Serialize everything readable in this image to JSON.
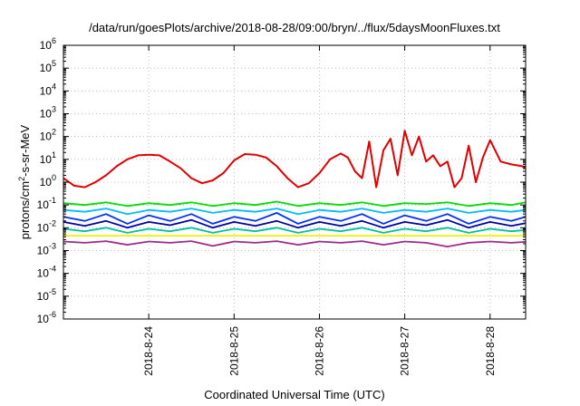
{
  "chart_data": {
    "type": "line",
    "title": "/data/run/goesPlots/archive/2018-08-28/09:00/bryn/../flux/5daysMoonFluxes.txt",
    "xlabel": "Coordinated Universal Time (UTC)",
    "ylabel": {
      "prefix": "protons/cm",
      "sup": "2",
      "suffix": "-s-sr-MeV"
    },
    "y_scale": "log",
    "ylim_exp": [
      -6,
      6
    ],
    "xlim": [
      "2018-08-23T00:00",
      "2018-08-28T10:00"
    ],
    "x_ticks": [
      {
        "label": "2018-8-24",
        "value": "2018-08-24T00:00"
      },
      {
        "label": "2018-8-25",
        "value": "2018-08-25T00:00"
      },
      {
        "label": "2018-8-26",
        "value": "2018-08-26T00:00"
      },
      {
        "label": "2018-8-27",
        "value": "2018-08-27T00:00"
      },
      {
        "label": "2018-8-28",
        "value": "2018-08-28T00:00"
      }
    ],
    "y_ticks": [
      {
        "base": "10",
        "exp": "6"
      },
      {
        "base": "10",
        "exp": "5"
      },
      {
        "base": "10",
        "exp": "4"
      },
      {
        "base": "10",
        "exp": "3"
      },
      {
        "base": "10",
        "exp": "2"
      },
      {
        "base": "10",
        "exp": "1"
      },
      {
        "base": "10",
        "exp": "0"
      },
      {
        "base": "10",
        "exp": "-1"
      },
      {
        "base": "10",
        "exp": "-2"
      },
      {
        "base": "10",
        "exp": "-3"
      },
      {
        "base": "10",
        "exp": "-4"
      },
      {
        "base": "10",
        "exp": "-5"
      },
      {
        "base": "10",
        "exp": "-6"
      }
    ],
    "grid": true,
    "legend": "none",
    "series": [
      {
        "color": "#e00000",
        "x": [
          "2018-08-23T00:00",
          "2018-08-23T03:00",
          "2018-08-23T06:00",
          "2018-08-23T09:00",
          "2018-08-23T12:00",
          "2018-08-23T15:00",
          "2018-08-23T18:00",
          "2018-08-23T21:00",
          "2018-08-24T00:00",
          "2018-08-24T03:00",
          "2018-08-24T06:00",
          "2018-08-24T09:00",
          "2018-08-24T12:00",
          "2018-08-24T15:00",
          "2018-08-24T18:00",
          "2018-08-24T21:00",
          "2018-08-25T00:00",
          "2018-08-25T03:00",
          "2018-08-25T06:00",
          "2018-08-25T09:00",
          "2018-08-25T12:00",
          "2018-08-25T15:00",
          "2018-08-25T18:00",
          "2018-08-25T21:00",
          "2018-08-26T00:00",
          "2018-08-26T03:00",
          "2018-08-26T06:00",
          "2018-08-26T08:00",
          "2018-08-26T10:00",
          "2018-08-26T12:00",
          "2018-08-26T14:00",
          "2018-08-26T16:00",
          "2018-08-26T18:00",
          "2018-08-26T20:00",
          "2018-08-26T22:00",
          "2018-08-27T00:00",
          "2018-08-27T02:00",
          "2018-08-27T04:00",
          "2018-08-27T06:00",
          "2018-08-27T08:00",
          "2018-08-27T10:00",
          "2018-08-27T12:00",
          "2018-08-27T14:00",
          "2018-08-27T16:00",
          "2018-08-27T18:00",
          "2018-08-27T20:00",
          "2018-08-27T22:00",
          "2018-08-28T00:00",
          "2018-08-28T03:00",
          "2018-08-28T06:00",
          "2018-08-28T09:00",
          "2018-08-28T10:00"
        ],
        "y": [
          1.5,
          0.7,
          0.6,
          1.0,
          2.0,
          5,
          10,
          15,
          16,
          15,
          8,
          4,
          1.5,
          0.9,
          1.2,
          2.5,
          9,
          17,
          16,
          12,
          5,
          1.5,
          0.6,
          0.9,
          2.5,
          10,
          18,
          12,
          3,
          1.5,
          60,
          0.6,
          25,
          80,
          2.0,
          180,
          15,
          100,
          8,
          15,
          5,
          8,
          0.6,
          1.5,
          40,
          1.0,
          12,
          70,
          8,
          6,
          5,
          4
        ]
      },
      {
        "color": "#00dd00",
        "x": [
          "2018-08-23T00:00",
          "2018-08-23T06:00",
          "2018-08-23T12:00",
          "2018-08-23T18:00",
          "2018-08-24T00:00",
          "2018-08-24T06:00",
          "2018-08-24T12:00",
          "2018-08-24T18:00",
          "2018-08-25T00:00",
          "2018-08-25T06:00",
          "2018-08-25T12:00",
          "2018-08-25T18:00",
          "2018-08-26T00:00",
          "2018-08-26T06:00",
          "2018-08-26T12:00",
          "2018-08-26T18:00",
          "2018-08-27T00:00",
          "2018-08-27T06:00",
          "2018-08-27T12:00",
          "2018-08-27T18:00",
          "2018-08-28T00:00",
          "2018-08-28T06:00",
          "2018-08-28T10:00"
        ],
        "y": [
          0.12,
          0.1,
          0.13,
          0.09,
          0.12,
          0.1,
          0.13,
          0.09,
          0.12,
          0.1,
          0.14,
          0.09,
          0.12,
          0.1,
          0.13,
          0.09,
          0.12,
          0.11,
          0.13,
          0.09,
          0.12,
          0.1,
          0.13
        ]
      },
      {
        "color": "#00bbff",
        "x": [
          "2018-08-23T00:00",
          "2018-08-23T06:00",
          "2018-08-23T12:00",
          "2018-08-23T18:00",
          "2018-08-24T00:00",
          "2018-08-24T06:00",
          "2018-08-24T12:00",
          "2018-08-24T18:00",
          "2018-08-25T00:00",
          "2018-08-25T06:00",
          "2018-08-25T12:00",
          "2018-08-25T18:00",
          "2018-08-26T00:00",
          "2018-08-26T06:00",
          "2018-08-26T12:00",
          "2018-08-26T18:00",
          "2018-08-27T00:00",
          "2018-08-27T06:00",
          "2018-08-27T12:00",
          "2018-08-27T18:00",
          "2018-08-28T00:00",
          "2018-08-28T06:00",
          "2018-08-28T10:00"
        ],
        "y": [
          0.06,
          0.05,
          0.07,
          0.04,
          0.06,
          0.05,
          0.07,
          0.045,
          0.06,
          0.05,
          0.07,
          0.04,
          0.06,
          0.05,
          0.07,
          0.045,
          0.06,
          0.05,
          0.07,
          0.045,
          0.06,
          0.05,
          0.06
        ]
      },
      {
        "color": "#0030ff",
        "x": [
          "2018-08-23T00:00",
          "2018-08-23T06:00",
          "2018-08-23T12:00",
          "2018-08-23T18:00",
          "2018-08-24T00:00",
          "2018-08-24T06:00",
          "2018-08-24T12:00",
          "2018-08-24T18:00",
          "2018-08-25T00:00",
          "2018-08-25T06:00",
          "2018-08-25T12:00",
          "2018-08-25T18:00",
          "2018-08-26T00:00",
          "2018-08-26T06:00",
          "2018-08-26T12:00",
          "2018-08-26T18:00",
          "2018-08-27T00:00",
          "2018-08-27T06:00",
          "2018-08-27T12:00",
          "2018-08-27T18:00",
          "2018-08-28T00:00",
          "2018-08-28T06:00",
          "2018-08-28T10:00"
        ],
        "y": [
          0.03,
          0.02,
          0.04,
          0.015,
          0.035,
          0.02,
          0.04,
          0.015,
          0.03,
          0.02,
          0.045,
          0.015,
          0.03,
          0.02,
          0.04,
          0.015,
          0.035,
          0.02,
          0.04,
          0.015,
          0.03,
          0.02,
          0.03
        ]
      },
      {
        "color": "#0000a0",
        "x": [
          "2018-08-23T00:00",
          "2018-08-23T06:00",
          "2018-08-23T12:00",
          "2018-08-23T18:00",
          "2018-08-24T00:00",
          "2018-08-24T06:00",
          "2018-08-24T12:00",
          "2018-08-24T18:00",
          "2018-08-25T00:00",
          "2018-08-25T06:00",
          "2018-08-25T12:00",
          "2018-08-25T18:00",
          "2018-08-26T00:00",
          "2018-08-26T06:00",
          "2018-08-26T12:00",
          "2018-08-26T18:00",
          "2018-08-27T00:00",
          "2018-08-27T06:00",
          "2018-08-27T12:00",
          "2018-08-27T18:00",
          "2018-08-28T00:00",
          "2018-08-28T06:00",
          "2018-08-28T10:00"
        ],
        "y": [
          0.018,
          0.012,
          0.02,
          0.01,
          0.018,
          0.013,
          0.022,
          0.01,
          0.018,
          0.012,
          0.02,
          0.01,
          0.018,
          0.012,
          0.02,
          0.01,
          0.018,
          0.013,
          0.022,
          0.01,
          0.018,
          0.012,
          0.016
        ]
      },
      {
        "color": "#00c0a0",
        "x": [
          "2018-08-23T00:00",
          "2018-08-23T06:00",
          "2018-08-23T12:00",
          "2018-08-23T18:00",
          "2018-08-24T00:00",
          "2018-08-24T06:00",
          "2018-08-24T12:00",
          "2018-08-24T18:00",
          "2018-08-25T00:00",
          "2018-08-25T06:00",
          "2018-08-25T12:00",
          "2018-08-25T18:00",
          "2018-08-26T00:00",
          "2018-08-26T06:00",
          "2018-08-26T12:00",
          "2018-08-26T18:00",
          "2018-08-27T00:00",
          "2018-08-27T06:00",
          "2018-08-27T12:00",
          "2018-08-27T18:00",
          "2018-08-28T00:00",
          "2018-08-28T06:00",
          "2018-08-28T10:00"
        ],
        "y": [
          0.009,
          0.007,
          0.01,
          0.006,
          0.009,
          0.007,
          0.01,
          0.006,
          0.009,
          0.007,
          0.01,
          0.006,
          0.009,
          0.007,
          0.01,
          0.006,
          0.009,
          0.007,
          0.01,
          0.006,
          0.009,
          0.007,
          0.008
        ]
      },
      {
        "color": "#f0f000",
        "x": [
          "2018-08-23T00:00",
          "2018-08-24T00:00",
          "2018-08-25T00:00",
          "2018-08-26T00:00",
          "2018-08-27T00:00",
          "2018-08-28T00:00",
          "2018-08-28T10:00"
        ],
        "y": [
          0.0045,
          0.0045,
          0.0045,
          0.0045,
          0.0045,
          0.0045,
          0.0045
        ]
      },
      {
        "color": "#9c2a8c",
        "x": [
          "2018-08-23T00:00",
          "2018-08-23T06:00",
          "2018-08-23T12:00",
          "2018-08-23T18:00",
          "2018-08-24T00:00",
          "2018-08-24T06:00",
          "2018-08-24T12:00",
          "2018-08-24T18:00",
          "2018-08-25T00:00",
          "2018-08-25T06:00",
          "2018-08-25T12:00",
          "2018-08-25T18:00",
          "2018-08-26T00:00",
          "2018-08-26T06:00",
          "2018-08-26T12:00",
          "2018-08-26T18:00",
          "2018-08-27T00:00",
          "2018-08-27T06:00",
          "2018-08-27T12:00",
          "2018-08-27T18:00",
          "2018-08-28T00:00",
          "2018-08-28T06:00",
          "2018-08-28T10:00"
        ],
        "y": [
          0.0025,
          0.0022,
          0.0026,
          0.0018,
          0.0025,
          0.0022,
          0.0026,
          0.0016,
          0.0025,
          0.0022,
          0.0026,
          0.0018,
          0.0025,
          0.0022,
          0.0026,
          0.0018,
          0.0025,
          0.0022,
          0.0015,
          0.0022,
          0.0025,
          0.0022,
          0.0024
        ]
      }
    ]
  }
}
